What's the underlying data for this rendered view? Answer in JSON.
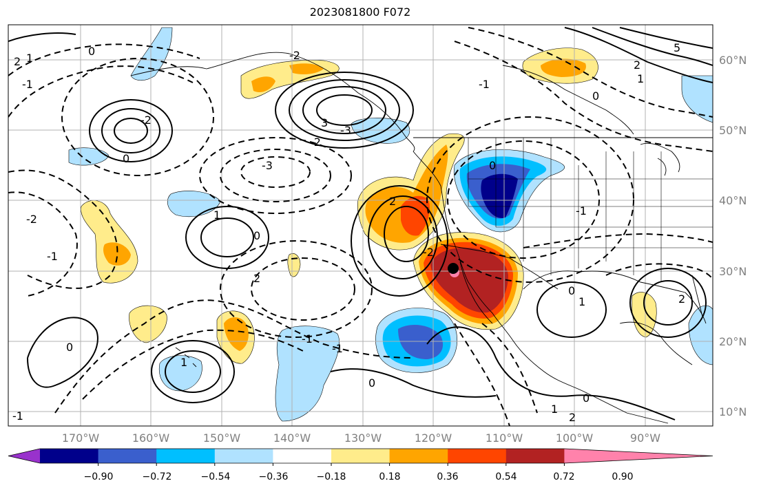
{
  "title": "2023081800 F072",
  "lat_labels": [
    "60°N",
    "50°N",
    "40°N",
    "30°N",
    "20°N",
    "10°N"
  ],
  "lon_labels": [
    "170°W",
    "160°W",
    "150°W",
    "140°W",
    "130°W",
    "120°W",
    "110°W",
    "100°W",
    "90°W"
  ],
  "colorbar": {
    "tick_labels": [
      "−0.90",
      "−0.72",
      "−0.54",
      "−0.36",
      "−0.18",
      "0.18",
      "0.36",
      "0.54",
      "0.72",
      "0.90"
    ],
    "colors": [
      "#9932cc",
      "#00008b",
      "#3a5fcd",
      "#00bfff",
      "#b0e2ff",
      "#ffffff",
      "#ffec8b",
      "#ffa500",
      "#ff4500",
      "#b22222",
      "#ff82ab"
    ]
  },
  "contour_labels": [
    "0",
    "2",
    "1",
    "-1",
    "-2",
    "-3",
    "3",
    "5",
    "0",
    "-1",
    "-2",
    "1",
    "2",
    "-3",
    "-2",
    "0",
    "1",
    "0",
    "-1",
    "-2",
    "2",
    "0",
    "1",
    "2",
    "0",
    "1",
    "-1",
    "0",
    "2",
    "-1",
    "0",
    "1",
    "2",
    "0",
    "-1",
    "-2",
    "-1"
  ],
  "shaded_regions": [
    {
      "name": "positive-anomaly-baja-california",
      "level": "0.72 to 0.90"
    },
    {
      "name": "negative-anomaly-great-basin",
      "level": "-0.90 to -0.72"
    },
    {
      "name": "negative-anomaly-eastern-pacific",
      "level": "-0.72 to -0.54"
    },
    {
      "name": "positive-anomaly-california-coast",
      "level": "0.54 to 0.72"
    }
  ]
}
